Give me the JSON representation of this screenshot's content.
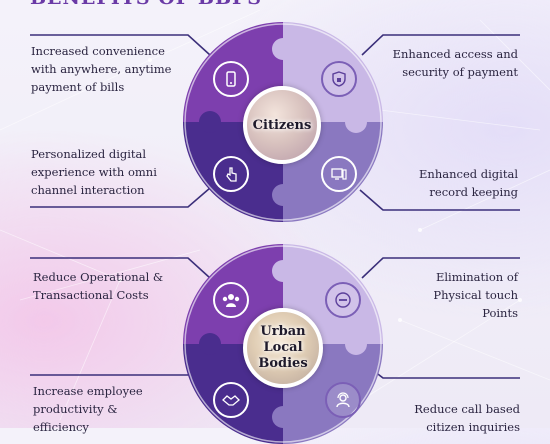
{
  "header": {
    "title": "BENEFITS OF BBPS"
  },
  "top_puzzle": {
    "center_label": "Citizens",
    "captions": {
      "top_left": "Increased convenience with anywhere, anytime payment of bills",
      "top_right": "Enhanced access and security of payment",
      "bottom_left": "Personalized digital experience with omni channel interaction",
      "bottom_right": "Enhanced digital record keeping"
    },
    "icons": {
      "top_left": "phone-payment-icon",
      "top_right": "shield-lock-icon",
      "bottom_left": "touch-hand-icon",
      "bottom_right": "digital-records-icon"
    }
  },
  "bottom_puzzle": {
    "center_label": "Urban Local Bodies",
    "center_label_lines": [
      "Urban",
      "Local",
      "Bodies"
    ],
    "captions": {
      "top_left": "Reduce Operational & Transactional Costs",
      "top_right": "Elimination of Physical touch Points",
      "bottom_left": "Increase employee productivity & efficiency",
      "bottom_right": "Reduce call based citizen inquiries"
    },
    "icons": {
      "top_left": "group-people-icon",
      "top_right": "no-entry-icon",
      "bottom_left": "handshake-icon",
      "bottom_right": "support-agent-icon"
    }
  },
  "colors": {
    "dark_purple": "#4a2d8e",
    "medium_purple": "#7d3fae",
    "light_lavender": "#c9b8e6",
    "muted_purple": "#8a78c0",
    "line": "#3b2f7a"
  }
}
